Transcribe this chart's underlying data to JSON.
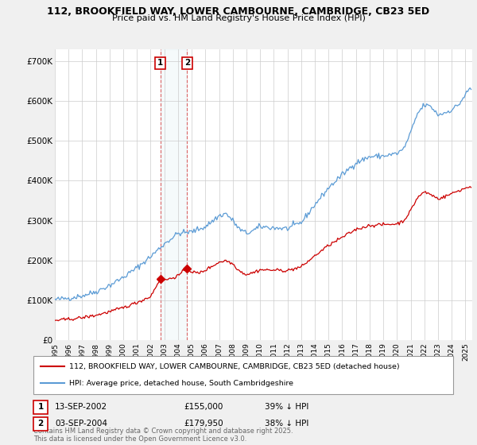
{
  "title1": "112, BROOKFIELD WAY, LOWER CAMBOURNE, CAMBRIDGE, CB23 5ED",
  "title2": "Price paid vs. HM Land Registry's House Price Index (HPI)",
  "ylabel_ticks": [
    "£0",
    "£100K",
    "£200K",
    "£300K",
    "£400K",
    "£500K",
    "£600K",
    "£700K"
  ],
  "ytick_values": [
    0,
    100000,
    200000,
    300000,
    400000,
    500000,
    600000,
    700000
  ],
  "ylim": [
    0,
    730000
  ],
  "xlim_start": 1995.0,
  "xlim_end": 2025.5,
  "xtick_years": [
    1995,
    1996,
    1997,
    1998,
    1999,
    2000,
    2001,
    2002,
    2003,
    2004,
    2005,
    2006,
    2007,
    2008,
    2009,
    2010,
    2011,
    2012,
    2013,
    2014,
    2015,
    2016,
    2017,
    2018,
    2019,
    2020,
    2021,
    2022,
    2023,
    2024,
    2025
  ],
  "transaction1_x": 2002.71,
  "transaction1_y": 155000,
  "transaction1_label": "1",
  "transaction1_date": "13-SEP-2002",
  "transaction1_price": "£155,000",
  "transaction1_hpi": "39% ↓ HPI",
  "transaction2_x": 2004.67,
  "transaction2_y": 179950,
  "transaction2_label": "2",
  "transaction2_date": "03-SEP-2004",
  "transaction2_price": "£179,950",
  "transaction2_hpi": "38% ↓ HPI",
  "red_color": "#cc0000",
  "blue_color": "#5b9bd5",
  "legend_line1": "112, BROOKFIELD WAY, LOWER CAMBOURNE, CAMBRIDGE, CB23 5ED (detached house)",
  "legend_line2": "HPI: Average price, detached house, South Cambridgeshire",
  "footer": "Contains HM Land Registry data © Crown copyright and database right 2025.\nThis data is licensed under the Open Government Licence v3.0.",
  "background_color": "#f0f0f0",
  "plot_bg": "#ffffff"
}
